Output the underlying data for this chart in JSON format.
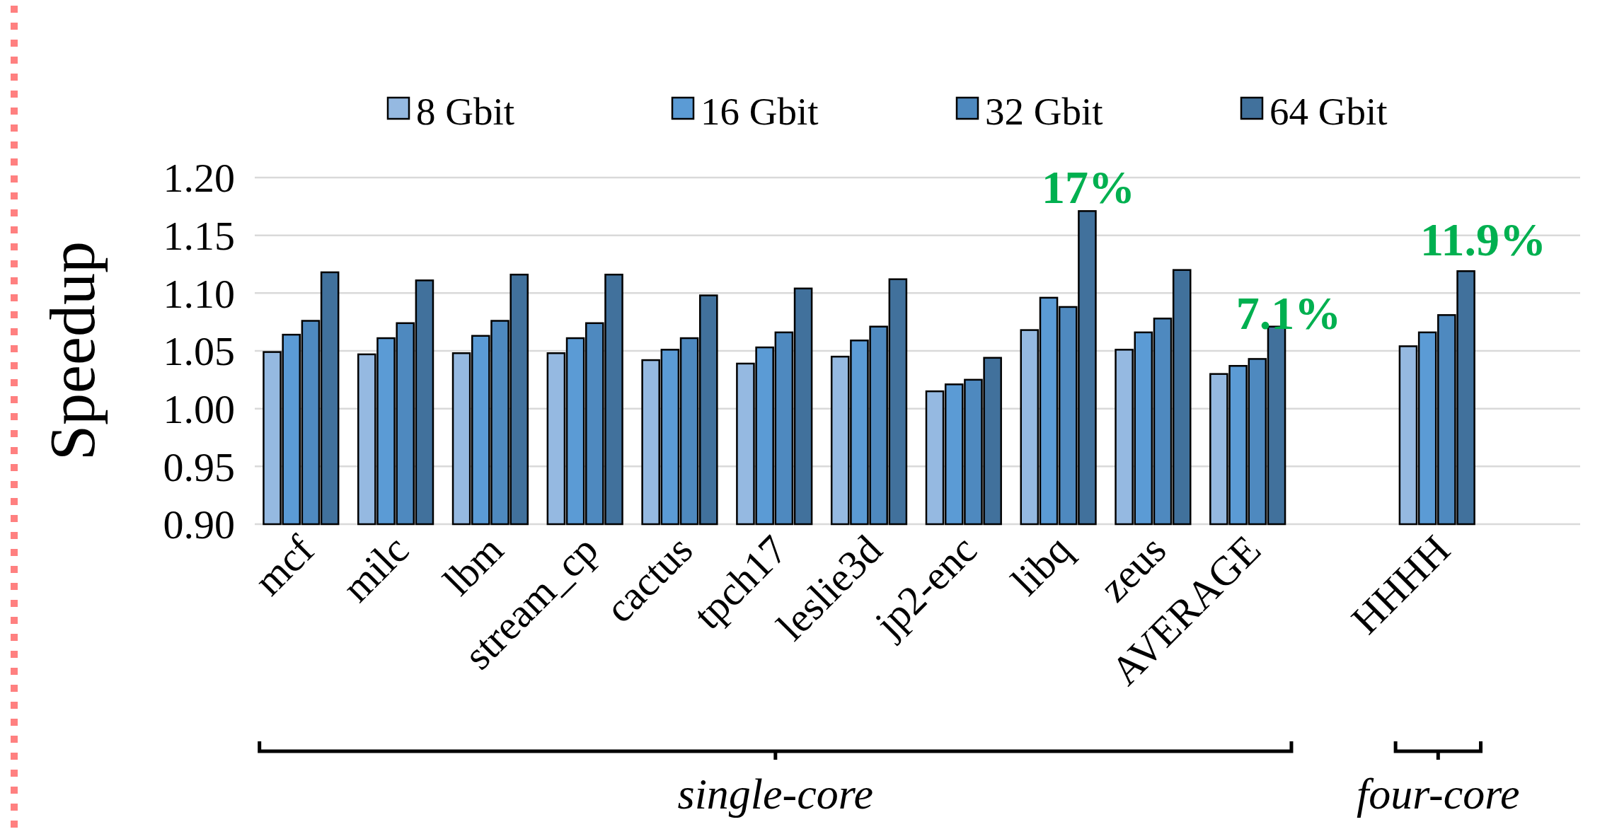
{
  "chart_data": {
    "type": "bar",
    "ylabel": "Speedup",
    "categories": [
      "mcf",
      "milc",
      "lbm",
      "stream_cp",
      "cactus",
      "tpch17",
      "leslie3d",
      "jp2-enc",
      "libq",
      "zeus",
      "AVERAGE",
      null,
      "HHHH",
      null
    ],
    "series": [
      {
        "name": "8 Gbit",
        "color": "#95b9e1",
        "values": [
          1.049,
          1.047,
          1.048,
          1.048,
          1.042,
          1.039,
          1.045,
          1.015,
          1.068,
          1.051,
          1.03,
          null,
          1.054,
          null
        ]
      },
      {
        "name": "16 Gbit",
        "color": "#5b9bd5",
        "values": [
          1.064,
          1.061,
          1.063,
          1.061,
          1.051,
          1.053,
          1.059,
          1.021,
          1.096,
          1.066,
          1.037,
          null,
          1.066,
          null
        ]
      },
      {
        "name": "32 Gbit",
        "color": "#4e89bf",
        "values": [
          1.076,
          1.074,
          1.076,
          1.074,
          1.061,
          1.066,
          1.071,
          1.025,
          1.088,
          1.078,
          1.043,
          null,
          1.081,
          null
        ]
      },
      {
        "name": "64 Gbit",
        "color": "#41719c",
        "values": [
          1.118,
          1.111,
          1.116,
          1.116,
          1.098,
          1.104,
          1.112,
          1.044,
          1.171,
          1.12,
          1.071,
          null,
          1.119,
          null
        ]
      }
    ],
    "ylim": [
      0.9,
      1.2
    ],
    "yticks": [
      {
        "value": 0.9,
        "label": "0.90"
      },
      {
        "value": 0.95,
        "label": "0.95"
      },
      {
        "value": 1.0,
        "label": "1.00"
      },
      {
        "value": 1.05,
        "label": "1.05"
      },
      {
        "value": 1.1,
        "label": "1.10"
      },
      {
        "value": 1.15,
        "label": "1.15"
      },
      {
        "value": 1.2,
        "label": "1.20"
      }
    ],
    "grid": "y",
    "legend": "top",
    "annotations": [
      "17%",
      "7.1%",
      "11.9%",
      "single-core",
      "four-core"
    ]
  }
}
